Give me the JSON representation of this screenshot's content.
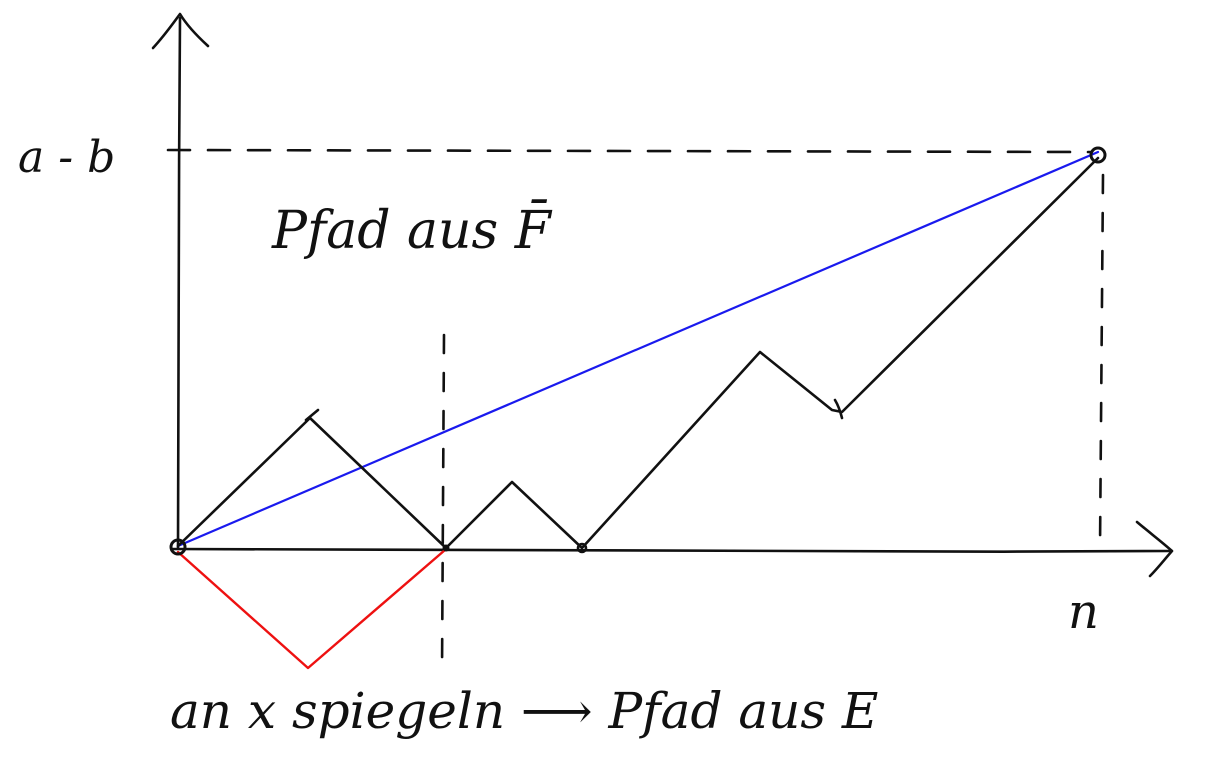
{
  "labels": {
    "y_value": "a - b",
    "x_value": "n",
    "path_top": "Pfad aus F̄",
    "bottom_caption": "an x spiegeln ⟶ Pfad aus E"
  },
  "colors": {
    "ink": "#111111",
    "chord": "#1a1aee",
    "reflection": "#ee1111"
  }
}
